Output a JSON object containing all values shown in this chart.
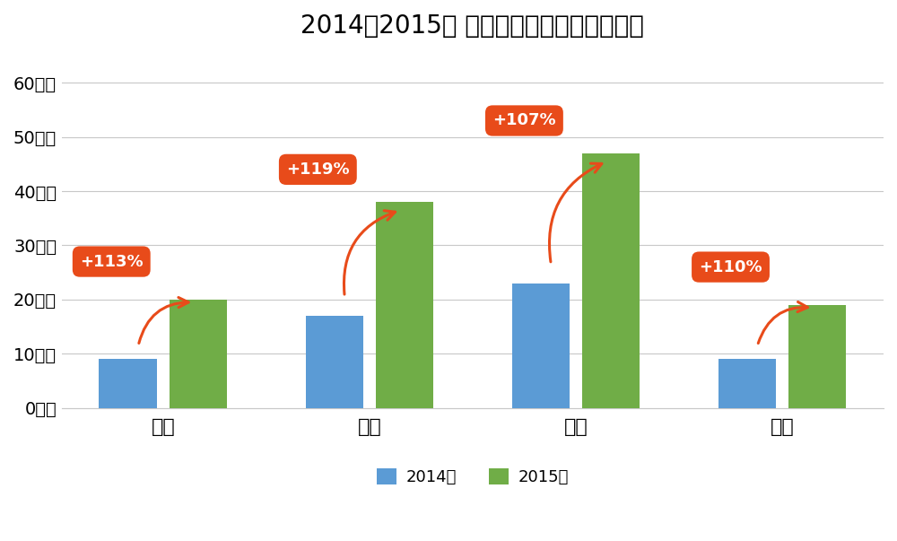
{
  "title": "2014～2015年 外国人延べ宿泊者数の推移",
  "categories": [
    "茨城",
    "三重",
    "滋賀",
    "佐賀"
  ],
  "values_2014": [
    9,
    17,
    23,
    9
  ],
  "values_2015": [
    20,
    38,
    47,
    19
  ],
  "pct_labels": [
    "+113%",
    "+119%",
    "+107%",
    "+110%"
  ],
  "bar_color_2014": "#5B9BD5",
  "bar_color_2015": "#70AD47",
  "label_2014": "2014年",
  "label_2015": "2015年",
  "arrow_color": "#E84B1A",
  "badge_color": "#E84B1A",
  "badge_text_color": "#FFFFFF",
  "yticks": [
    0,
    10,
    20,
    30,
    40,
    50,
    60
  ],
  "ylabel_suffix": "万人",
  "ylim": [
    0,
    65
  ],
  "background_color": "#FFFFFF",
  "grid_color": "#C8C8C8",
  "title_fontsize": 20,
  "axis_fontsize": 14,
  "badge_fontsize": 13,
  "legend_fontsize": 13,
  "bar_width": 0.28,
  "bar_gap": 0.06
}
